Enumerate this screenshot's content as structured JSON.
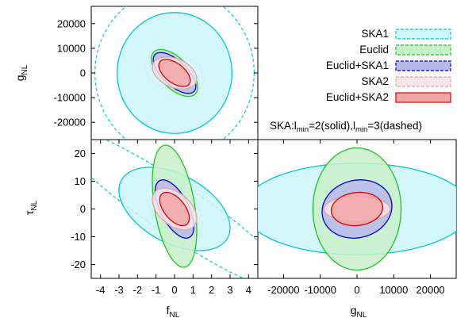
{
  "chart_data": {
    "type": "contour-triangle",
    "parameters": [
      "f_NL",
      "g_NL",
      "tau_NL"
    ],
    "panels": [
      {
        "id": "gNL_vs_fNL",
        "xparam": "fNL",
        "yparam": "gNL",
        "xlim": [
          -4.5,
          4.5
        ],
        "ylim": [
          -27000,
          27000
        ],
        "yticks": [
          20000,
          10000,
          0,
          -10000,
          -20000
        ],
        "ytick_labels": [
          "20000",
          "10000",
          "0",
          "-10000",
          "-20000"
        ],
        "ylabel_main": "g",
        "ylabel_sub": "NL"
      },
      {
        "id": "tauNL_vs_fNL",
        "xparam": "fNL",
        "yparam": "tauNL",
        "xlim": [
          -4.5,
          4.5
        ],
        "ylim": [
          -25,
          25
        ],
        "xticks": [
          -4,
          -3,
          -2,
          -1,
          0,
          1,
          2,
          3,
          4
        ],
        "xtick_labels": [
          "-4",
          "-3",
          "-2",
          "-1",
          "0",
          "1",
          "2",
          "3",
          "4"
        ],
        "yticks": [
          20,
          10,
          0,
          -10,
          -20
        ],
        "ytick_labels": [
          "20",
          "10",
          "0",
          "-10",
          "-20"
        ],
        "xlabel_main": "f",
        "xlabel_sub": "NL",
        "ylabel_main": "τ",
        "ylabel_sub": "NL"
      },
      {
        "id": "tauNL_vs_gNL",
        "xparam": "gNL",
        "yparam": "tauNL",
        "xlim": [
          -27000,
          27000
        ],
        "ylim": [
          -25,
          25
        ],
        "xticks": [
          -20000,
          -10000,
          0,
          10000,
          20000
        ],
        "xtick_labels": [
          "-20000",
          "-10000",
          "0",
          "10000",
          "20000"
        ],
        "xlabel_main": "g",
        "xlabel_sub": "NL"
      }
    ],
    "legend": {
      "placement": "upper-right",
      "entries": [
        {
          "label": "SKA1",
          "key": "SKA1"
        },
        {
          "label": "Euclid",
          "key": "Euclid"
        },
        {
          "label": "Euclid+SKA1",
          "key": "EuclidSKA1"
        },
        {
          "label": "SKA2",
          "key": "SKA2"
        },
        {
          "label": "Euclid+SKA2",
          "key": "EuclidSKA2"
        }
      ]
    },
    "note": {
      "prefix": "SKA:l",
      "sub1": "min",
      "mid": "=2(solid),l",
      "sub2": "min",
      "suffix": "=3(dashed)"
    },
    "series": [
      {
        "key": "SKA1",
        "line": "#00c8d8",
        "fill": "#cdf6fa",
        "ellipses": {
          "gNL_vs_fNL": {
            "solid": {
              "c": [
                0,
                0
              ],
              "sx": 3.1,
              "sy": 24500,
              "rho": 0
            },
            "dashed": {
              "c": [
                0,
                0
              ],
              "sx": 4.3,
              "sy": 34000,
              "rho": 0
            }
          },
          "tauNL_vs_fNL": {
            "solid": {
              "c": [
                0,
                0
              ],
              "sx": 3.0,
              "sy": 15,
              "rho": -0.45
            },
            "dashed": {
              "c": [
                0,
                0
              ],
              "sx": 6.5,
              "sy": 30,
              "rho": -0.93
            }
          },
          "tauNL_vs_gNL": {
            "solid": {
              "c": [
                0,
                0
              ],
              "sx": 31000,
              "sy": 16.5,
              "rho": 0
            }
          }
        }
      },
      {
        "key": "Euclid",
        "line": "#22c422",
        "fill": "#c8f0c8",
        "ellipses": {
          "gNL_vs_fNL": {
            "solid": {
              "c": [
                0,
                0
              ],
              "sx": 1.25,
              "sy": 9500,
              "rho": -0.6
            }
          },
          "tauNL_vs_fNL": {
            "solid": {
              "c": [
                0,
                1.0
              ],
              "sx": 1.2,
              "sy": 22,
              "rho": -0.4
            }
          },
          "tauNL_vs_gNL": {
            "solid": {
              "c": [
                0,
                0
              ],
              "sx": 12000,
              "sy": 22,
              "rho": 0
            }
          }
        }
      },
      {
        "key": "EuclidSKA1",
        "line": "#0000cc",
        "fill": "#b8b8ec",
        "ellipses": {
          "gNL_vs_fNL": {
            "solid": {
              "c": [
                0,
                0
              ],
              "sx": 1.15,
              "sy": 8300,
              "rho": -0.65
            }
          },
          "tauNL_vs_fNL": {
            "solid": {
              "c": [
                0,
                0
              ],
              "sx": 1.05,
              "sy": 10.5,
              "rho": -0.6
            }
          },
          "tauNL_vs_gNL": {
            "solid": {
              "c": [
                0,
                0
              ],
              "sx": 9500,
              "sy": 10.5,
              "rho": 0.1
            }
          }
        }
      },
      {
        "key": "SKA2",
        "line": "#e8a0a8",
        "fill": "#f4e6ea",
        "ellipses": {
          "gNL_vs_fNL": {
            "solid": {
              "c": [
                0,
                0
              ],
              "sx": 1.2,
              "sy": 6500,
              "rho": -0.35
            },
            "dashed": {
              "c": [
                0,
                0
              ],
              "sx": 1.6,
              "sy": 8000,
              "rho": -0.3
            }
          },
          "tauNL_vs_fNL": {
            "solid": {
              "c": [
                0,
                0
              ],
              "sx": 1.2,
              "sy": 7.5,
              "rho": -0.45
            },
            "dashed": {
              "c": [
                0,
                0
              ],
              "sx": 1.5,
              "sy": 11,
              "rho": -0.45
            }
          },
          "tauNL_vs_gNL": {
            "solid": {
              "c": [
                0,
                0
              ],
              "sx": 9000,
              "sy": 4.5,
              "rho": 0
            },
            "dashed": {
              "c": [
                0,
                0
              ],
              "sx": 11000,
              "sy": 9.5,
              "rho": 0
            }
          }
        }
      },
      {
        "key": "EuclidSKA2",
        "line": "#dd0000",
        "fill": "#f5a5a5",
        "ellipses": {
          "gNL_vs_fNL": {
            "solid": {
              "c": [
                0,
                0
              ],
              "sx": 0.85,
              "sy": 5500,
              "rho": -0.55
            }
          },
          "tauNL_vs_fNL": {
            "solid": {
              "c": [
                0,
                0
              ],
              "sx": 0.8,
              "sy": 6,
              "rho": -0.55
            }
          },
          "tauNL_vs_gNL": {
            "solid": {
              "c": [
                0,
                0
              ],
              "sx": 7000,
              "sy": 6,
              "rho": 0.1
            }
          }
        }
      }
    ]
  }
}
